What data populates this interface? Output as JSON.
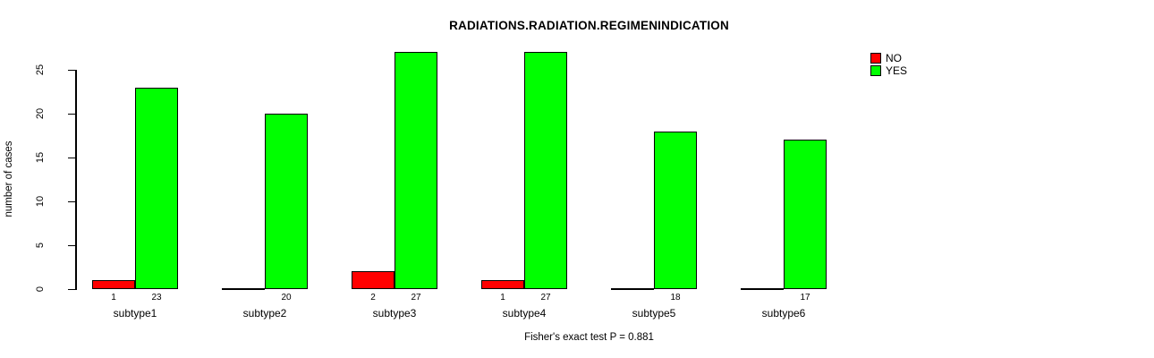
{
  "chart_data": {
    "type": "bar",
    "title": "RADIATIONS.RADIATION.REGIMENINDICATION",
    "ylabel": "number of cases",
    "xlabel": "",
    "footer": "Fisher's exact test P = 0.881",
    "categories": [
      "subtype1",
      "subtype2",
      "subtype3",
      "subtype4",
      "subtype5",
      "subtype6"
    ],
    "series": [
      {
        "name": "NO",
        "color": "#FF0000",
        "values": [
          1,
          0,
          2,
          1,
          0,
          0
        ],
        "labels": [
          "1",
          "",
          "2",
          "1",
          "",
          ""
        ]
      },
      {
        "name": "YES",
        "color": "#00FF00",
        "values": [
          23,
          20,
          27,
          27,
          18,
          17
        ],
        "labels": [
          "23",
          "20",
          "27",
          "27",
          "18",
          "17"
        ]
      }
    ],
    "yticks": [
      0,
      5,
      10,
      15,
      20,
      25
    ],
    "ylim": [
      0,
      25
    ],
    "grid": false,
    "legend_position": "top-right",
    "axis_color": "#000000",
    "background_color": "#FFFFFF"
  }
}
